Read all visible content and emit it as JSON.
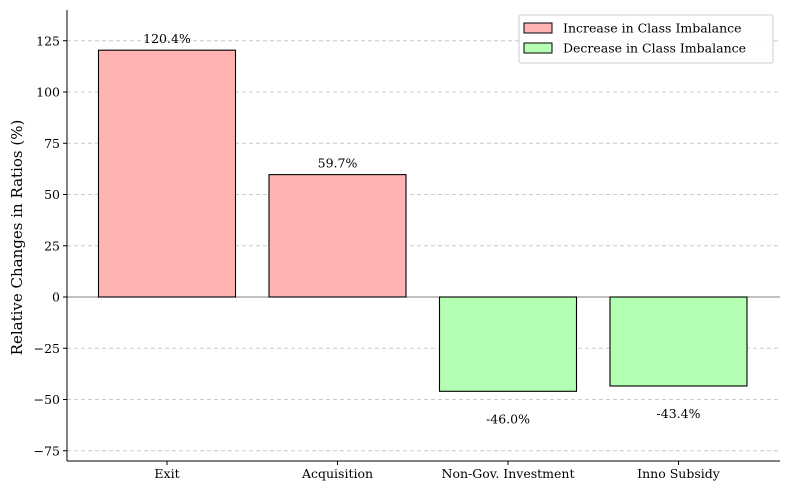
{
  "chart_data": {
    "type": "bar",
    "categories": [
      "Exit",
      "Acquisition",
      "Non-Gov. Investment",
      "Inno Subsidy"
    ],
    "values": [
      120.4,
      59.7,
      -46.0,
      -43.4
    ],
    "data_labels": [
      "120.4%",
      "59.7%",
      "-46.0%",
      "-43.4%"
    ],
    "title": "",
    "xlabel": "",
    "ylabel": "Relative Changes in Ratios (%)",
    "ylim": [
      -80,
      140
    ],
    "yticks": [
      -75,
      -50,
      -25,
      0,
      25,
      50,
      75,
      100,
      125
    ],
    "ytick_labels": [
      "−75",
      "−50",
      "−25",
      "0",
      "25",
      "50",
      "75",
      "100",
      "125"
    ],
    "grid": "y-dashed",
    "legend_position": "top-right",
    "legend": [
      {
        "label": "Increase in Class Imbalance",
        "color": "#ffb3b3"
      },
      {
        "label": "Decrease in Class Imbalance",
        "color": "#b3ffb3"
      }
    ],
    "colors": {
      "increase": "#ffb3b3",
      "decrease": "#b3ffb3",
      "edge": "#000000",
      "grid": "#cccccc",
      "zero_line": "#808080"
    }
  }
}
